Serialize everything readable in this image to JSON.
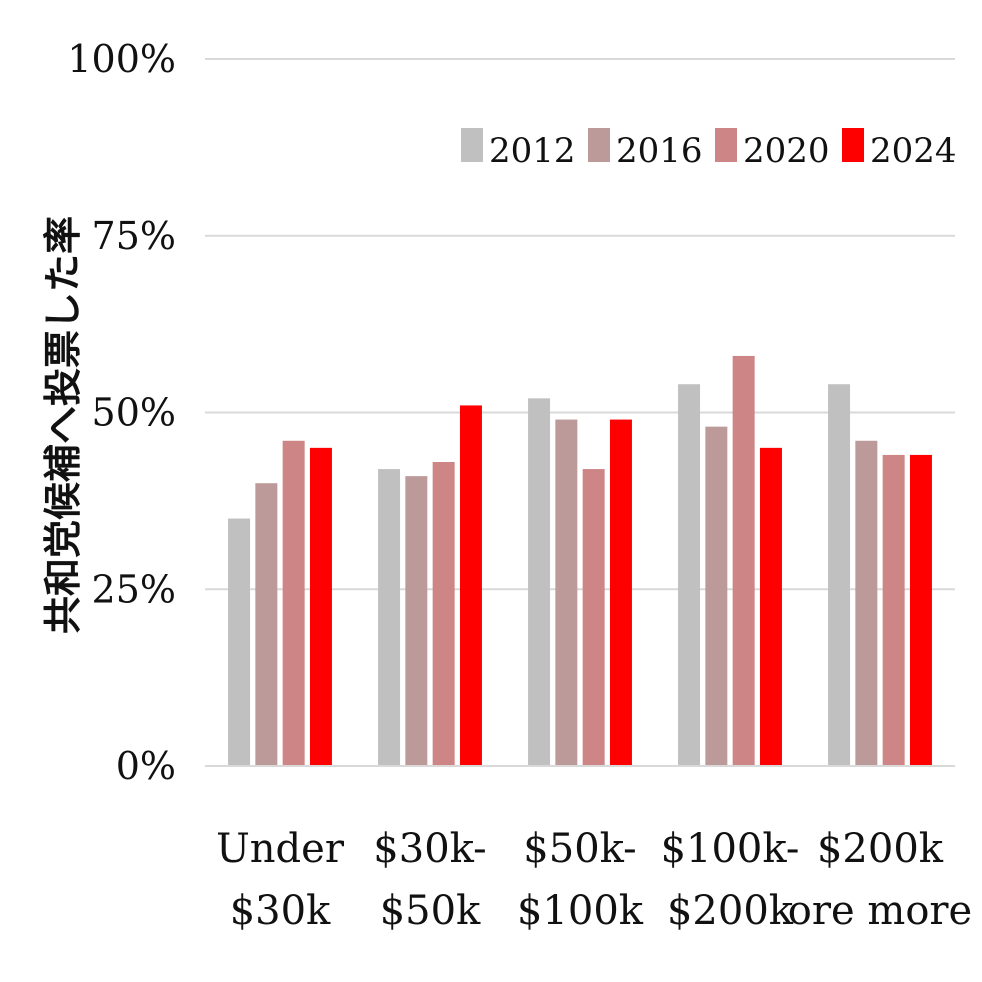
{
  "chart_data": {
    "type": "bar",
    "title": "",
    "xlabel": "",
    "ylabel": "共和党候補へ投票した率",
    "categories": [
      [
        "Under",
        "$30k"
      ],
      [
        "$30k-",
        "$50k"
      ],
      [
        "$50k-",
        "$100k"
      ],
      [
        "$100k-",
        "$200k"
      ],
      [
        "$200k",
        "ore more"
      ]
    ],
    "series": [
      {
        "name": "2012",
        "color": "#c0c0c0",
        "values": [
          35,
          42,
          52,
          54,
          54
        ]
      },
      {
        "name": "2016",
        "color": "#bc9a9a",
        "values": [
          40,
          41,
          49,
          48,
          46
        ]
      },
      {
        "name": "2020",
        "color": "#cd8585",
        "values": [
          46,
          43,
          42,
          58,
          44
        ]
      },
      {
        "name": "2024",
        "color": "#ff0000",
        "values": [
          45,
          51,
          49,
          45,
          44
        ]
      }
    ],
    "ylim": [
      0,
      100
    ],
    "yticks": [
      0,
      25,
      50,
      75,
      100
    ],
    "ytick_labels": [
      "0%",
      "25%",
      "50%",
      "75%",
      "100%"
    ],
    "grid": true,
    "legend_position": "top-right"
  }
}
